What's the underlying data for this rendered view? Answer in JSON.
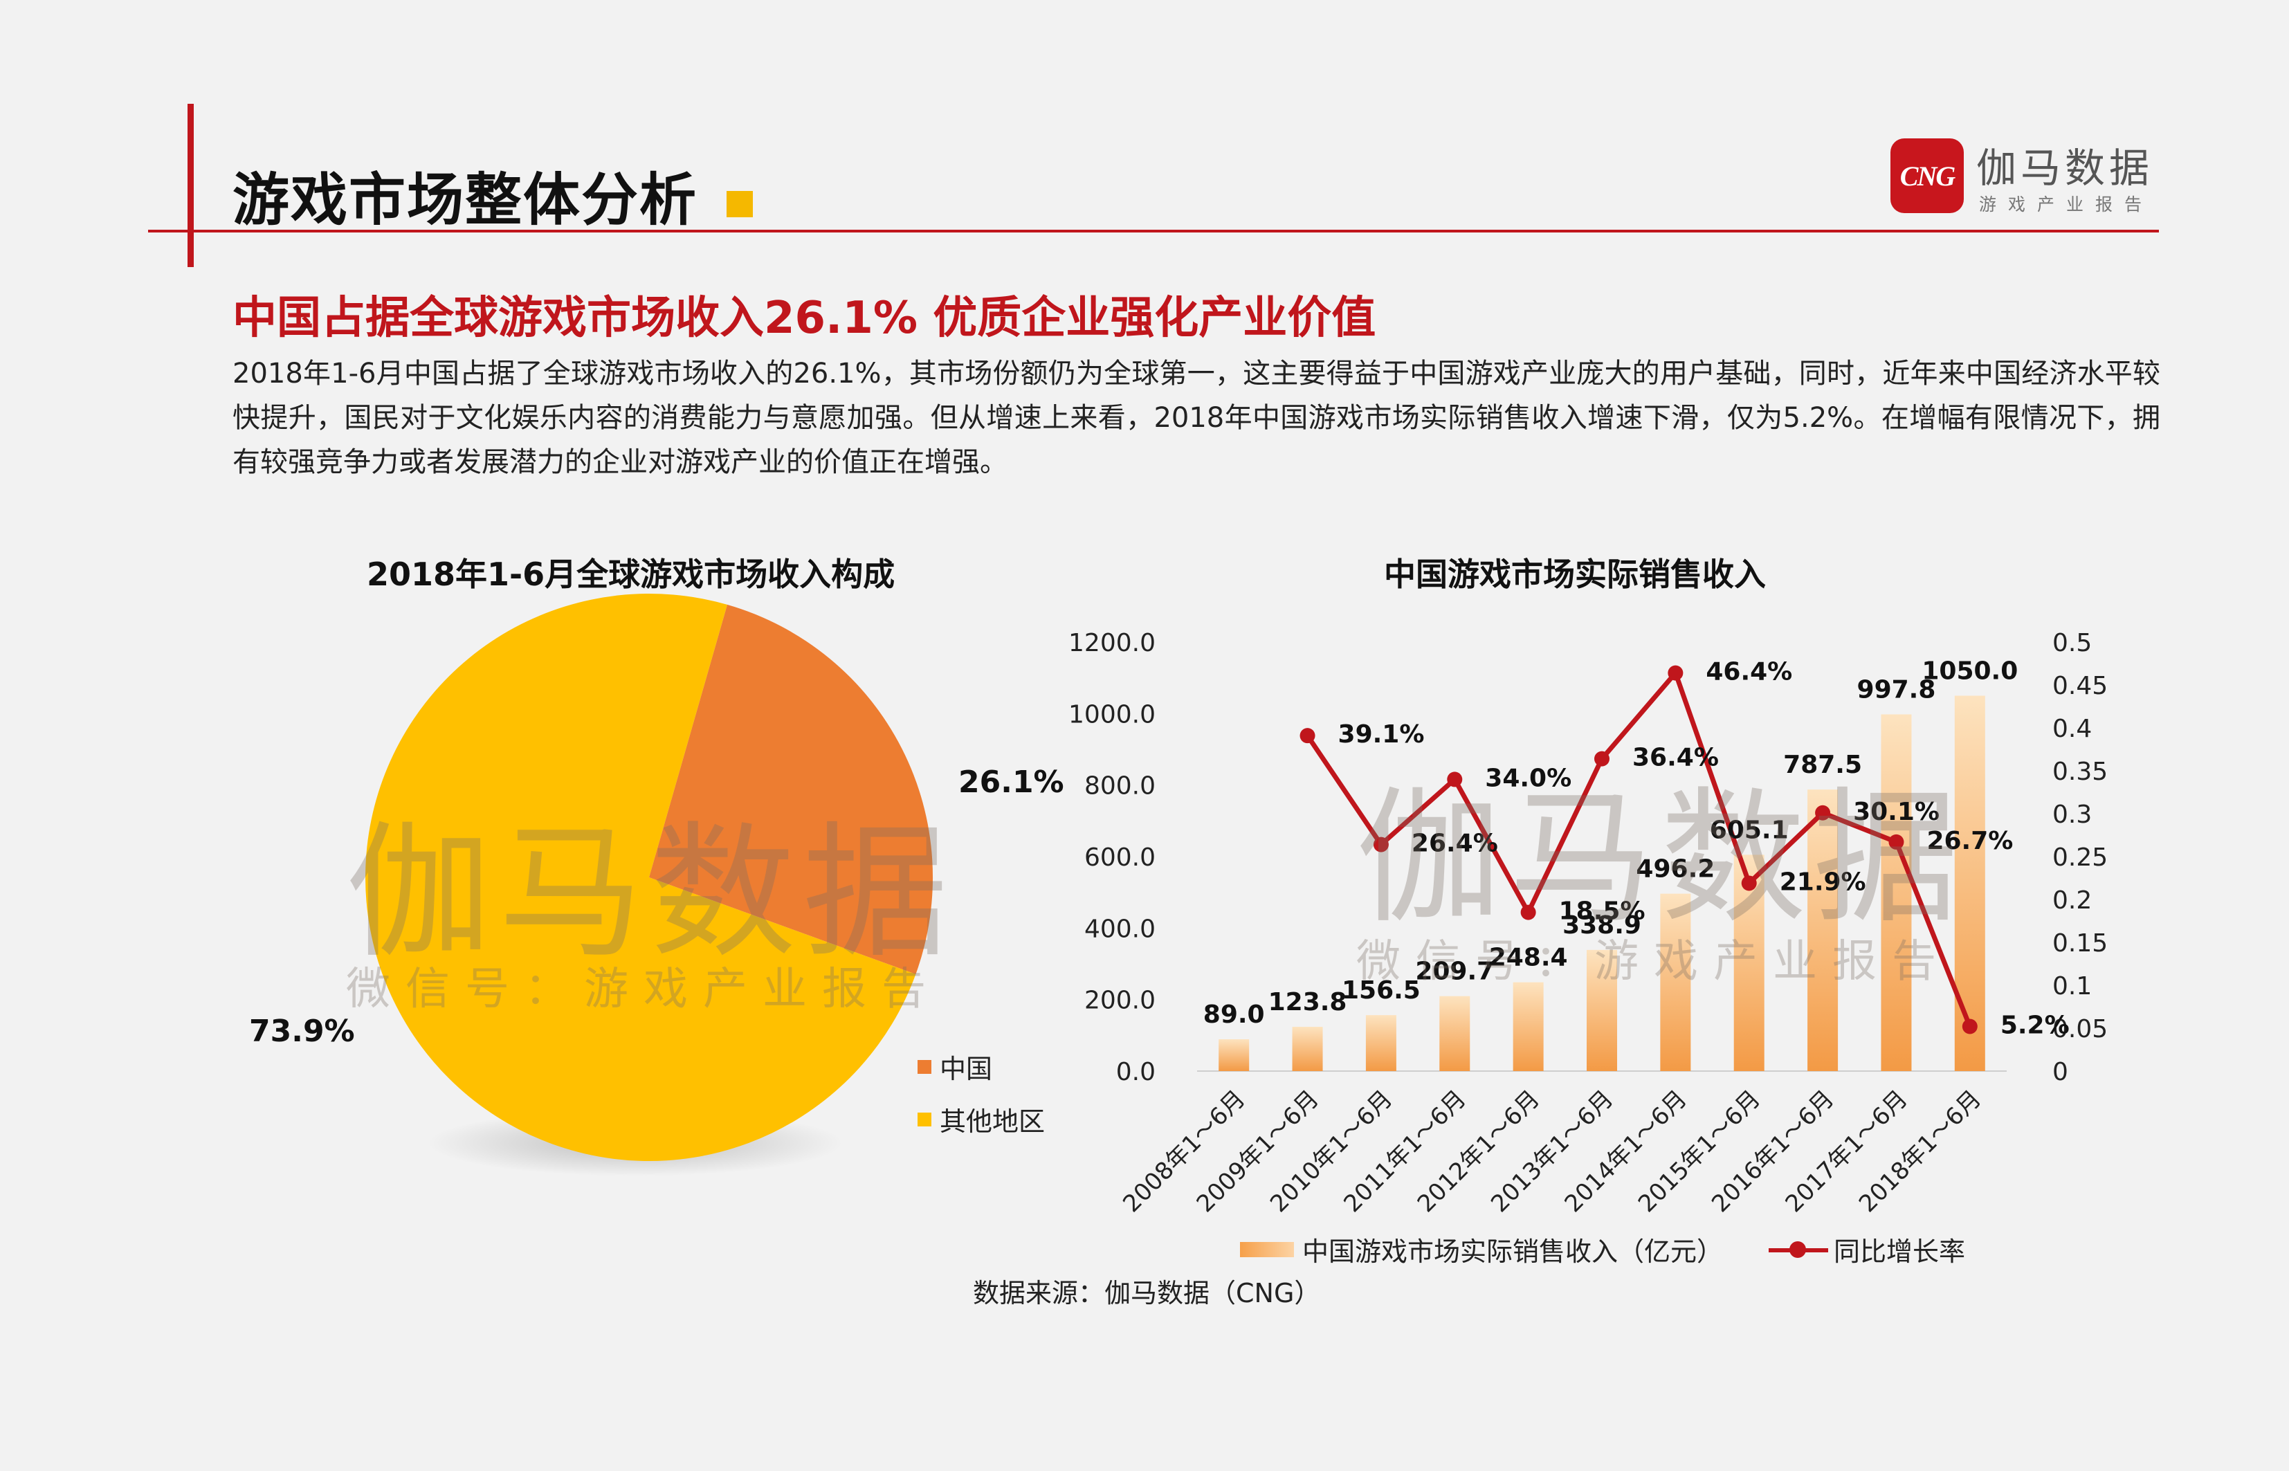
{
  "header": {
    "title": "游戏市场整体分析",
    "logo_badge": "CNG",
    "logo_name": "伽马数据",
    "logo_sub": "游戏产业报告"
  },
  "headline": "中国占据全球游戏市场收入26.1%  优质企业强化产业价值",
  "description": "2018年1-6月中国占据了全球游戏市场收入的26.1%，其市场份额仍为全球第一，这主要得益于中国游戏产业庞大的用户基础，同时，近年来中国经济水平较快提升，国民对于文化娱乐内容的消费能力与意愿加强。但从增速上来看，2018年中国游戏市场实际销售收入增速下滑，仅为5.2%。在增幅有限情况下，拥有较强竞争力或者发展潜力的企业对游戏产业的价值正在增强。",
  "watermark": {
    "big": "伽马数据",
    "small": "微信号：游戏产业报告"
  },
  "source": "数据来源：伽马数据（CNG）",
  "colors": {
    "brand_red": "#c0161c",
    "china": "#ed7d31",
    "others": "#ffc000",
    "bar": "#f6a04a",
    "line": "#c0161c"
  },
  "chart_data": [
    {
      "type": "pie",
      "title": "2018年1-6月全球游戏市场收入构成",
      "slices": [
        {
          "name": "中国",
          "value": 26.1,
          "label": "26.1%",
          "color": "#ed7d31"
        },
        {
          "name": "其他地区",
          "value": 73.9,
          "label": "73.9%",
          "color": "#ffc000"
        }
      ],
      "legend": [
        "中国",
        "其他地区"
      ],
      "legend_position": "right"
    },
    {
      "type": "bar+line",
      "title": "中国游戏市场实际销售收入",
      "categories": [
        "2008年1～6月",
        "2009年1～6月",
        "2010年1～6月",
        "2011年1～6月",
        "2012年1～6月",
        "2013年1～6月",
        "2014年1～6月",
        "2015年1～6月",
        "2016年1～6月",
        "2017年1～6月",
        "2018年1～6月"
      ],
      "series": [
        {
          "name": "中国游戏市场实际销售收入（亿元）",
          "type": "bar",
          "axis": "left",
          "values": [
            89.0,
            123.8,
            156.5,
            209.7,
            248.4,
            338.9,
            496.2,
            605.1,
            787.5,
            997.8,
            1050.0
          ],
          "labels": [
            "89.0",
            "123.8",
            "156.5",
            "209.7",
            "248.4",
            "338.9",
            "496.2",
            "605.1",
            "787.5",
            "997.8",
            "1050.0"
          ]
        },
        {
          "name": "同比增长率",
          "type": "line",
          "axis": "right",
          "values": [
            null,
            0.391,
            0.264,
            0.34,
            0.185,
            0.364,
            0.464,
            0.219,
            0.301,
            0.267,
            0.052
          ],
          "labels": [
            "",
            "39.1%",
            "26.4%",
            "34.0%",
            "18.5%",
            "36.4%",
            "46.4%",
            "21.9%",
            "30.1%",
            "26.7%",
            "5.2%"
          ]
        }
      ],
      "y_left": {
        "range": [
          0,
          1200
        ],
        "ticks": [
          "0.0",
          "200.0",
          "400.0",
          "600.0",
          "800.0",
          "1000.0",
          "1200.0"
        ]
      },
      "y_right": {
        "range": [
          0,
          0.5
        ],
        "ticks": [
          "0",
          "0.05",
          "0.1",
          "0.15",
          "0.2",
          "0.25",
          "0.3",
          "0.35",
          "0.4",
          "0.45",
          "0.5"
        ]
      },
      "grid": false,
      "legend_position": "bottom"
    }
  ]
}
